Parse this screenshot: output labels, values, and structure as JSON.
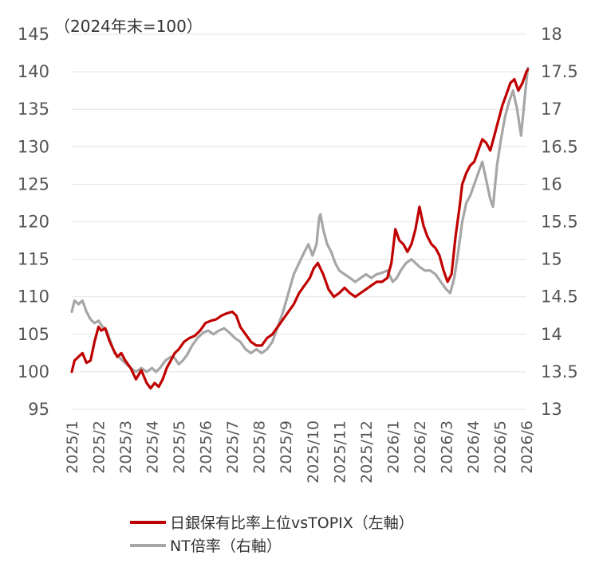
{
  "chart_data": {
    "type": "line",
    "title": "",
    "annotation": "（2024年末=100）",
    "xlabel": "",
    "ylabel": "",
    "grid": "horizontal",
    "legend_position": "bottom",
    "x_categories": [
      "2025/1",
      "2025/2",
      "2025/3",
      "2025/4",
      "2025/5",
      "2025/6",
      "2025/7",
      "2025/8",
      "2025/9",
      "2025/10",
      "2025/11",
      "2025/12",
      "2026/1",
      "2026/2",
      "2026/3",
      "2026/4",
      "2026/5",
      "2026/6"
    ],
    "y_left": {
      "min": 95,
      "max": 145,
      "ticks": [
        95,
        100,
        105,
        110,
        115,
        120,
        125,
        130,
        135,
        140,
        145
      ]
    },
    "y_right": {
      "min": 13,
      "max": 18,
      "ticks": [
        "13",
        "13.5",
        "14",
        "14.5",
        "15",
        "15.5",
        "16",
        "16.5",
        "17",
        "17.5",
        "18"
      ]
    },
    "series": [
      {
        "name": "日銀保有比率上位vsTOPIX（左軸）",
        "axis": "left",
        "color": "#c00000",
        "points": [
          [
            0.0,
            100.0
          ],
          [
            0.1,
            101.5
          ],
          [
            0.25,
            102.0
          ],
          [
            0.4,
            102.5
          ],
          [
            0.55,
            101.2
          ],
          [
            0.7,
            101.5
          ],
          [
            0.85,
            104.0
          ],
          [
            1.0,
            106.0
          ],
          [
            1.1,
            105.5
          ],
          [
            1.25,
            105.8
          ],
          [
            1.4,
            104.2
          ],
          [
            1.55,
            103.0
          ],
          [
            1.7,
            102.0
          ],
          [
            1.85,
            102.5
          ],
          [
            2.0,
            101.5
          ],
          [
            2.2,
            100.5
          ],
          [
            2.4,
            99.0
          ],
          [
            2.6,
            100.2
          ],
          [
            2.8,
            98.5
          ],
          [
            2.95,
            97.8
          ],
          [
            3.1,
            98.5
          ],
          [
            3.25,
            98.0
          ],
          [
            3.4,
            99.0
          ],
          [
            3.55,
            100.5
          ],
          [
            3.7,
            101.5
          ],
          [
            3.85,
            102.5
          ],
          [
            4.0,
            103.0
          ],
          [
            4.2,
            104.0
          ],
          [
            4.4,
            104.5
          ],
          [
            4.6,
            104.8
          ],
          [
            4.8,
            105.5
          ],
          [
            5.0,
            106.5
          ],
          [
            5.2,
            106.8
          ],
          [
            5.4,
            107.0
          ],
          [
            5.6,
            107.5
          ],
          [
            5.8,
            107.8
          ],
          [
            6.0,
            108.0
          ],
          [
            6.15,
            107.5
          ],
          [
            6.3,
            106.0
          ],
          [
            6.5,
            105.0
          ],
          [
            6.7,
            104.0
          ],
          [
            6.9,
            103.5
          ],
          [
            7.1,
            103.5
          ],
          [
            7.3,
            104.5
          ],
          [
            7.5,
            105.0
          ],
          [
            7.7,
            106.0
          ],
          [
            7.9,
            107.0
          ],
          [
            8.1,
            108.0
          ],
          [
            8.3,
            109.0
          ],
          [
            8.5,
            110.5
          ],
          [
            8.7,
            111.5
          ],
          [
            8.9,
            112.5
          ],
          [
            9.05,
            113.8
          ],
          [
            9.2,
            114.5
          ],
          [
            9.4,
            113.0
          ],
          [
            9.6,
            111.0
          ],
          [
            9.8,
            110.0
          ],
          [
            10.0,
            110.5
          ],
          [
            10.2,
            111.2
          ],
          [
            10.4,
            110.5
          ],
          [
            10.6,
            110.0
          ],
          [
            10.8,
            110.5
          ],
          [
            11.0,
            111.0
          ],
          [
            11.2,
            111.5
          ],
          [
            11.4,
            112.0
          ],
          [
            11.6,
            112.0
          ],
          [
            11.8,
            112.5
          ],
          [
            11.95,
            114.5
          ],
          [
            12.1,
            119.0
          ],
          [
            12.25,
            117.5
          ],
          [
            12.4,
            117.0
          ],
          [
            12.55,
            116.0
          ],
          [
            12.7,
            117.0
          ],
          [
            12.85,
            119.0
          ],
          [
            13.0,
            122.0
          ],
          [
            13.15,
            119.5
          ],
          [
            13.3,
            118.0
          ],
          [
            13.45,
            117.0
          ],
          [
            13.6,
            116.5
          ],
          [
            13.75,
            115.5
          ],
          [
            13.9,
            113.5
          ],
          [
            14.05,
            112.0
          ],
          [
            14.2,
            113.0
          ],
          [
            14.35,
            118.0
          ],
          [
            14.5,
            122.0
          ],
          [
            14.6,
            125.0
          ],
          [
            14.75,
            126.5
          ],
          [
            14.9,
            127.5
          ],
          [
            15.05,
            128.0
          ],
          [
            15.2,
            129.5
          ],
          [
            15.35,
            131.0
          ],
          [
            15.5,
            130.5
          ],
          [
            15.65,
            129.5
          ],
          [
            15.8,
            131.5
          ],
          [
            15.95,
            133.5
          ],
          [
            16.1,
            135.5
          ],
          [
            16.25,
            137.0
          ],
          [
            16.4,
            138.5
          ],
          [
            16.55,
            139.0
          ],
          [
            16.7,
            137.5
          ],
          [
            16.85,
            138.5
          ],
          [
            17.0,
            140.0
          ],
          [
            17.05,
            140.3
          ]
        ]
      },
      {
        "name": "NT倍率（右軸）",
        "axis": "right",
        "color": "#a6a6a6",
        "points": [
          [
            0.0,
            14.3
          ],
          [
            0.1,
            14.45
          ],
          [
            0.25,
            14.4
          ],
          [
            0.4,
            14.45
          ],
          [
            0.55,
            14.3
          ],
          [
            0.7,
            14.2
          ],
          [
            0.85,
            14.15
          ],
          [
            1.0,
            14.18
          ],
          [
            1.15,
            14.1
          ],
          [
            1.3,
            14.05
          ],
          [
            1.45,
            13.9
          ],
          [
            1.6,
            13.75
          ],
          [
            1.75,
            13.7
          ],
          [
            1.9,
            13.65
          ],
          [
            2.05,
            13.6
          ],
          [
            2.2,
            13.55
          ],
          [
            2.4,
            13.5
          ],
          [
            2.6,
            13.55
          ],
          [
            2.8,
            13.5
          ],
          [
            3.0,
            13.55
          ],
          [
            3.15,
            13.5
          ],
          [
            3.3,
            13.55
          ],
          [
            3.5,
            13.65
          ],
          [
            3.7,
            13.7
          ],
          [
            3.85,
            13.68
          ],
          [
            4.0,
            13.6
          ],
          [
            4.15,
            13.65
          ],
          [
            4.3,
            13.72
          ],
          [
            4.5,
            13.85
          ],
          [
            4.7,
            13.95
          ],
          [
            4.9,
            14.02
          ],
          [
            5.1,
            14.05
          ],
          [
            5.3,
            14.0
          ],
          [
            5.5,
            14.05
          ],
          [
            5.7,
            14.08
          ],
          [
            5.9,
            14.02
          ],
          [
            6.1,
            13.95
          ],
          [
            6.3,
            13.9
          ],
          [
            6.5,
            13.8
          ],
          [
            6.7,
            13.75
          ],
          [
            6.9,
            13.8
          ],
          [
            7.1,
            13.75
          ],
          [
            7.3,
            13.8
          ],
          [
            7.5,
            13.9
          ],
          [
            7.7,
            14.1
          ],
          [
            7.9,
            14.3
          ],
          [
            8.1,
            14.55
          ],
          [
            8.3,
            14.8
          ],
          [
            8.5,
            14.95
          ],
          [
            8.7,
            15.1
          ],
          [
            8.85,
            15.2
          ],
          [
            9.0,
            15.05
          ],
          [
            9.15,
            15.2
          ],
          [
            9.25,
            15.55
          ],
          [
            9.3,
            15.6
          ],
          [
            9.4,
            15.4
          ],
          [
            9.55,
            15.2
          ],
          [
            9.7,
            15.1
          ],
          [
            9.85,
            14.95
          ],
          [
            10.0,
            14.85
          ],
          [
            10.2,
            14.8
          ],
          [
            10.4,
            14.75
          ],
          [
            10.6,
            14.7
          ],
          [
            10.8,
            14.75
          ],
          [
            11.0,
            14.8
          ],
          [
            11.2,
            14.75
          ],
          [
            11.4,
            14.8
          ],
          [
            11.6,
            14.82
          ],
          [
            11.8,
            14.85
          ],
          [
            12.0,
            14.7
          ],
          [
            12.15,
            14.75
          ],
          [
            12.3,
            14.85
          ],
          [
            12.5,
            14.95
          ],
          [
            12.7,
            15.0
          ],
          [
            12.85,
            14.95
          ],
          [
            13.0,
            14.9
          ],
          [
            13.2,
            14.85
          ],
          [
            13.4,
            14.85
          ],
          [
            13.6,
            14.8
          ],
          [
            13.8,
            14.7
          ],
          [
            14.0,
            14.6
          ],
          [
            14.15,
            14.55
          ],
          [
            14.3,
            14.75
          ],
          [
            14.45,
            15.1
          ],
          [
            14.6,
            15.5
          ],
          [
            14.75,
            15.75
          ],
          [
            14.9,
            15.85
          ],
          [
            15.05,
            16.0
          ],
          [
            15.2,
            16.15
          ],
          [
            15.35,
            16.3
          ],
          [
            15.5,
            16.05
          ],
          [
            15.65,
            15.8
          ],
          [
            15.75,
            15.7
          ],
          [
            15.9,
            16.25
          ],
          [
            16.05,
            16.6
          ],
          [
            16.2,
            16.9
          ],
          [
            16.35,
            17.1
          ],
          [
            16.5,
            17.25
          ],
          [
            16.65,
            17.0
          ],
          [
            16.8,
            16.65
          ],
          [
            16.95,
            17.2
          ],
          [
            17.05,
            17.55
          ]
        ]
      }
    ]
  }
}
